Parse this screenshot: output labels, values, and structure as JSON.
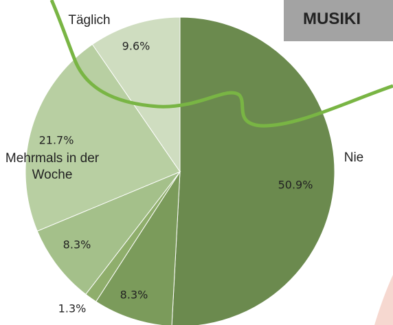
{
  "title": "MUSIKI",
  "chart_data": {
    "type": "pie",
    "categories": [
      "Nie",
      null,
      null,
      null,
      "Mehrmals in der Woche",
      "Täglich"
    ],
    "values": [
      50.9,
      8.3,
      1.3,
      8.3,
      21.7,
      9.6
    ],
    "value_labels": [
      "50.9%",
      "8.3%",
      "1.3%",
      "8.3%",
      "21.7%",
      "9.6%"
    ],
    "colors": [
      "#6b8a4e",
      "#7b9b5b",
      "#8fae6c",
      "#a4c08a",
      "#b8cfa2",
      "#cfddc0"
    ]
  }
}
